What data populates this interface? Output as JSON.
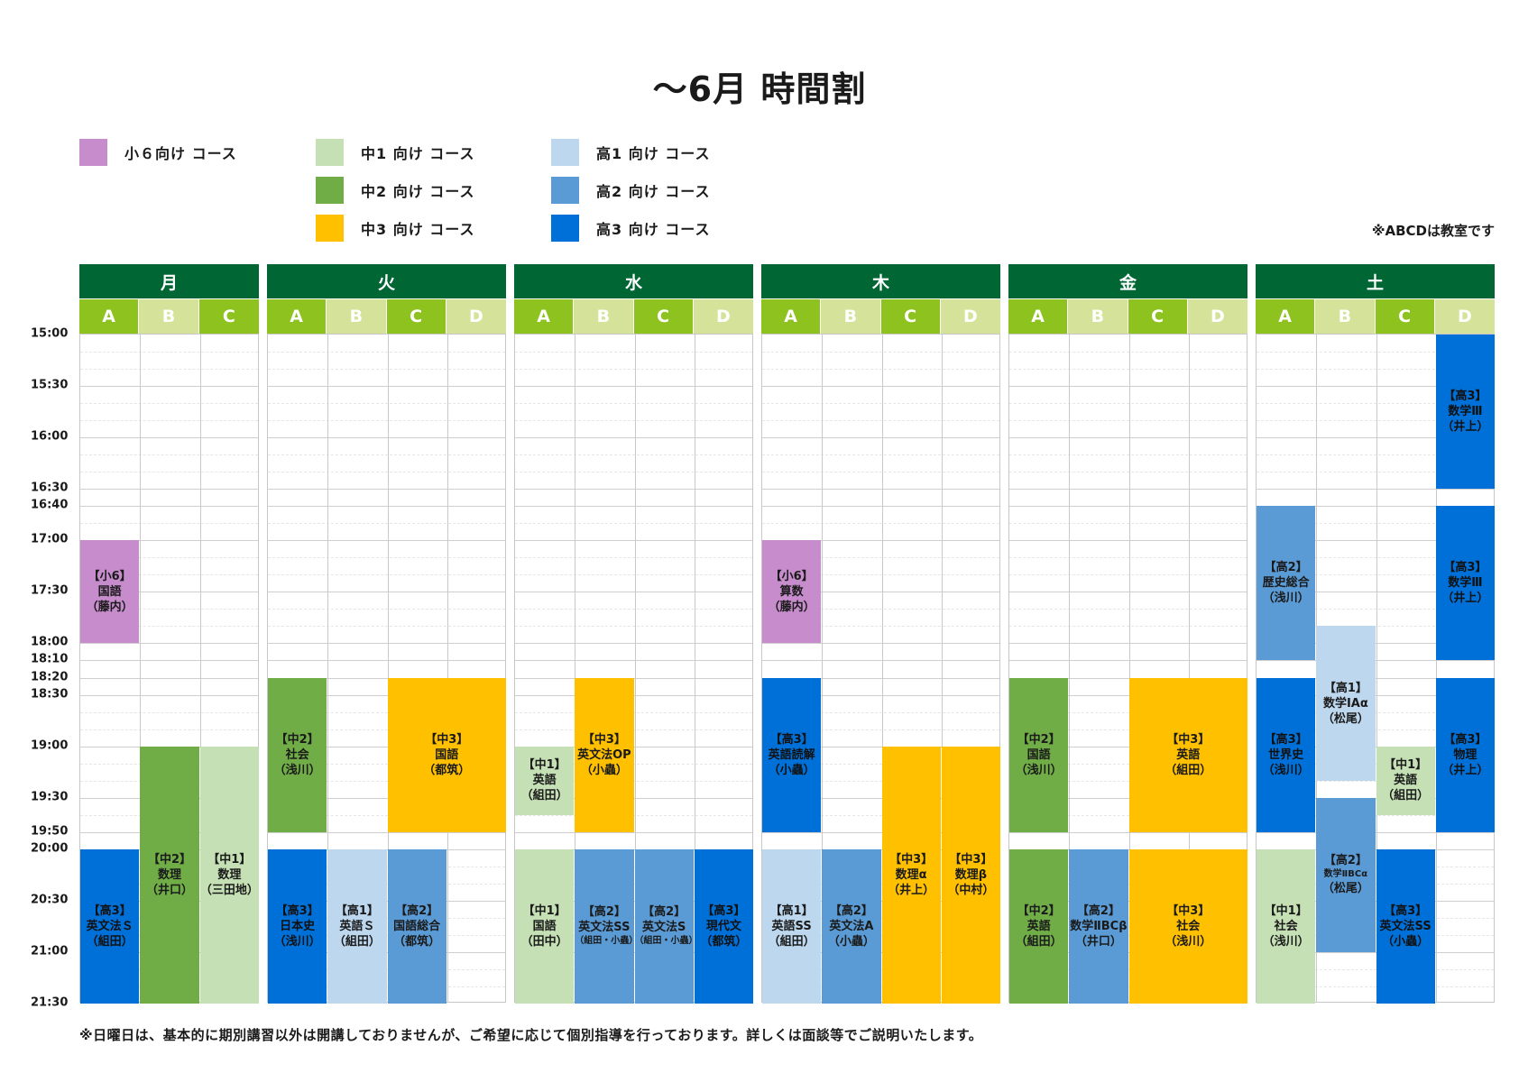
{
  "title": "～6月 時間割",
  "legend": [
    {
      "label": "小６向け コース",
      "color": "#c68ccc"
    },
    {
      "label": "中1 向け コース",
      "color": "#c5e0b4"
    },
    {
      "label": "中2 向け コース",
      "color": "#70ad47"
    },
    {
      "label": "中3 向け コース",
      "color": "#ffc000"
    },
    {
      "label": "高1 向け コース",
      "color": "#bdd7ee"
    },
    {
      "label": "高2 向け コース",
      "color": "#5b9bd5"
    },
    {
      "label": "高3 向け コース",
      "color": "#0070d9"
    }
  ],
  "room_note": "※ABCDは教室です",
  "footer_note": "※日曜日は、基本的に期別講習以外は開講しておりませんが、ご希望に応じて個別指導を行っております。詳しくは面談等でご説明いたします。",
  "time_labels": [
    "15:00",
    "15:30",
    "16:00",
    "16:30",
    "16:40",
    "17:00",
    "17:30",
    "18:00",
    "18:10",
    "18:20",
    "18:30",
    "19:00",
    "19:30",
    "19:50",
    "20:00",
    "20:30",
    "21:00",
    "21:30"
  ],
  "colors": {
    "header": "#006634",
    "room_dark": "#8dc21f",
    "room_light": "#d5e39a"
  },
  "days": [
    {
      "name": "月",
      "rooms": [
        "A",
        "B",
        "C"
      ],
      "lessons": [
        {
          "room": 0,
          "start": "17:00",
          "end": "18:00",
          "level": "小6",
          "subject": "国語",
          "teacher": "（藤内）"
        },
        {
          "room": 1,
          "start": "19:00",
          "end": "21:30",
          "level": "中2",
          "subject": "数理",
          "teacher": "（井口）"
        },
        {
          "room": 2,
          "start": "19:00",
          "end": "21:30",
          "level": "中1",
          "subject": "数理",
          "teacher": "（三田地）"
        },
        {
          "room": 0,
          "start": "20:00",
          "end": "21:30",
          "level": "高3",
          "subject": "英文法Ｓ",
          "teacher": "（組田）"
        }
      ]
    },
    {
      "name": "火",
      "rooms": [
        "A",
        "B",
        "C",
        "D"
      ],
      "lessons": [
        {
          "room": 0,
          "start": "18:20",
          "end": "19:50",
          "level": "中2",
          "subject": "社会",
          "teacher": "（浅川）"
        },
        {
          "room": 2,
          "span": 2,
          "start": "18:20",
          "end": "19:50",
          "level": "中3",
          "subject": "国語",
          "teacher": "（都筑）"
        },
        {
          "room": 0,
          "start": "20:00",
          "end": "21:30",
          "level": "高3",
          "subject": "日本史",
          "teacher": "（浅川）"
        },
        {
          "room": 1,
          "start": "20:00",
          "end": "21:30",
          "level": "高1",
          "subject": "英語Ｓ",
          "teacher": "（組田）"
        },
        {
          "room": 2,
          "start": "20:00",
          "end": "21:30",
          "level": "高2",
          "subject": "国語総合",
          "teacher": "（都筑）"
        }
      ]
    },
    {
      "name": "水",
      "rooms": [
        "A",
        "B",
        "C",
        "D"
      ],
      "lessons": [
        {
          "room": 0,
          "start": "19:00",
          "end": "19:40",
          "level": "中1",
          "subject": "英語",
          "teacher": "（組田）"
        },
        {
          "room": 1,
          "start": "18:20",
          "end": "19:50",
          "level": "中3",
          "subject": "英文法OP",
          "teacher": "（小蟲）"
        },
        {
          "room": 0,
          "start": "20:00",
          "end": "21:30",
          "level": "中1",
          "subject": "国語",
          "teacher": "（田中）"
        },
        {
          "room": 1,
          "start": "20:00",
          "end": "21:30",
          "level": "高2",
          "subject": "英文法SS",
          "teacher": "（組田・小蟲）",
          "small": true
        },
        {
          "room": 2,
          "start": "20:00",
          "end": "21:30",
          "level": "高2",
          "subject": "英文法S",
          "teacher": "（組田・小蟲）",
          "small": true
        },
        {
          "room": 3,
          "start": "20:00",
          "end": "21:30",
          "level": "高3",
          "subject": "現代文",
          "teacher": "（都筑）"
        }
      ]
    },
    {
      "name": "木",
      "rooms": [
        "A",
        "B",
        "C",
        "D"
      ],
      "lessons": [
        {
          "room": 0,
          "start": "17:00",
          "end": "18:00",
          "level": "小6",
          "subject": "算数",
          "teacher": "（藤内）"
        },
        {
          "room": 0,
          "start": "18:20",
          "end": "19:50",
          "level": "高3",
          "subject": "英語読解",
          "teacher": "（小蟲）"
        },
        {
          "room": 2,
          "start": "19:00",
          "end": "21:30",
          "level": "中3",
          "subject": "数理α",
          "teacher": "（井上）"
        },
        {
          "room": 3,
          "start": "19:00",
          "end": "21:30",
          "level": "中3",
          "subject": "数理β",
          "teacher": "（中村）"
        },
        {
          "room": 0,
          "start": "20:00",
          "end": "21:30",
          "level": "高1",
          "subject": "英語SS",
          "teacher": "（組田）"
        },
        {
          "room": 1,
          "start": "20:00",
          "end": "21:30",
          "level": "高2",
          "subject": "英文法A",
          "teacher": "（小蟲）"
        }
      ]
    },
    {
      "name": "金",
      "rooms": [
        "A",
        "B",
        "C",
        "D"
      ],
      "lessons": [
        {
          "room": 0,
          "start": "18:20",
          "end": "19:50",
          "level": "中2",
          "subject": "国語",
          "teacher": "（浅川）"
        },
        {
          "room": 2,
          "span": 2,
          "start": "18:20",
          "end": "19:50",
          "level": "中3",
          "subject": "英語",
          "teacher": "（組田）"
        },
        {
          "room": 0,
          "start": "20:00",
          "end": "21:30",
          "level": "中2",
          "subject": "英語",
          "teacher": "（組田）"
        },
        {
          "room": 1,
          "start": "20:00",
          "end": "21:30",
          "level": "高2",
          "subject": "数学ⅡBCβ",
          "teacher": "（井口）"
        },
        {
          "room": 2,
          "span": 2,
          "start": "20:00",
          "end": "21:30",
          "level": "中3",
          "subject": "社会",
          "teacher": "（浅川）"
        }
      ]
    },
    {
      "name": "土",
      "rooms": [
        "A",
        "B",
        "C",
        "D"
      ],
      "lessons": [
        {
          "room": 3,
          "start": "15:00",
          "end": "16:30",
          "level": "高3",
          "subject": "数学Ⅲ",
          "teacher": "（井上）"
        },
        {
          "room": 3,
          "start": "16:40",
          "end": "18:10",
          "level": "高3",
          "subject": "数学Ⅲ",
          "teacher": "（井上）"
        },
        {
          "room": 3,
          "start": "18:20",
          "end": "19:50",
          "level": "高3",
          "subject": "物理",
          "teacher": "（井上）"
        },
        {
          "room": 0,
          "start": "16:40",
          "end": "18:10",
          "level": "高2",
          "subject": "歴史総合",
          "teacher": "（浅川）"
        },
        {
          "room": 0,
          "start": "18:20",
          "end": "19:50",
          "level": "高3",
          "subject": "世界史",
          "teacher": "（浅川）"
        },
        {
          "room": 0,
          "start": "20:00",
          "end": "21:30",
          "level": "中1",
          "subject": "社会",
          "teacher": "（浅川）"
        },
        {
          "room": 1,
          "start": "17:50",
          "end": "19:20",
          "level": "高1",
          "subject": "数学ⅠAα",
          "teacher": "（松尾）"
        },
        {
          "room": 1,
          "start": "19:30",
          "end": "21:00",
          "level": "高2",
          "subject": "数学ⅡBCα",
          "teacher": "（松尾）",
          "smallsubject": true
        },
        {
          "room": 2,
          "start": "19:00",
          "end": "19:40",
          "level": "中1",
          "subject": "英語",
          "teacher": "（組田）"
        },
        {
          "room": 2,
          "start": "20:00",
          "end": "21:30",
          "level": "高3",
          "subject": "英文法SS",
          "teacher": "（小蟲）"
        }
      ]
    }
  ]
}
